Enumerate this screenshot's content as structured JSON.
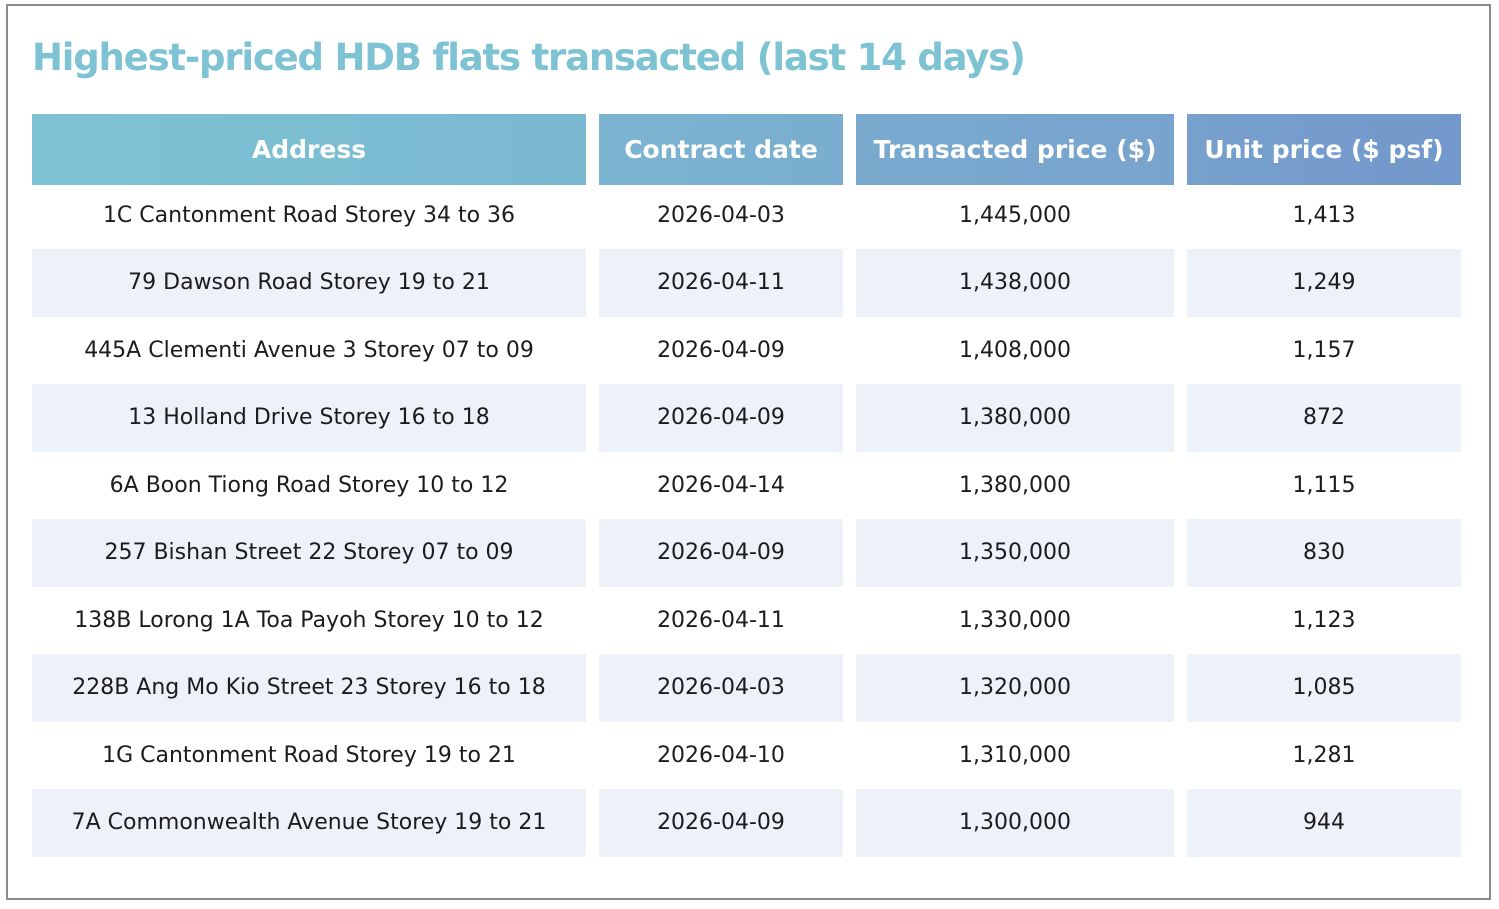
{
  "title": "Highest-priced HDB flats transacted (last 14 days)",
  "table": {
    "headers": [
      "Address",
      "Contract date",
      "Transacted price ($)",
      "Unit price ($ psf)"
    ],
    "rows": [
      [
        "1C Cantonment Road Storey 34 to 36",
        "2026-04-03",
        "1,445,000",
        "1,413"
      ],
      [
        "79 Dawson Road Storey 19 to 21",
        "2026-04-11",
        "1,438,000",
        "1,249"
      ],
      [
        "445A Clementi Avenue 3 Storey 07 to 09",
        "2026-04-09",
        "1,408,000",
        "1,157"
      ],
      [
        "13 Holland Drive Storey 16 to 18",
        "2026-04-09",
        "1,380,000",
        "872"
      ],
      [
        "6A Boon Tiong Road Storey 10 to 12",
        "2026-04-14",
        "1,380,000",
        "1,115"
      ],
      [
        "257 Bishan Street 22 Storey 07 to 09",
        "2026-04-09",
        "1,350,000",
        "830"
      ],
      [
        "138B Lorong 1A Toa Payoh Storey 10 to 12",
        "2026-04-11",
        "1,330,000",
        "1,123"
      ],
      [
        "228B Ang Mo Kio Street 23 Storey 16 to 18",
        "2026-04-03",
        "1,320,000",
        "1,085"
      ],
      [
        "1G Cantonment Road Storey 19 to 21",
        "2026-04-10",
        "1,310,000",
        "1,281"
      ],
      [
        "7A Commonwealth Avenue Storey 19 to 21",
        "2026-04-09",
        "1,300,000",
        "944"
      ]
    ]
  },
  "colors": {
    "title": "#7dc3d3",
    "header_start": "#7dc3d3",
    "header_end": "#7398cb",
    "row_alt": "#edf1f8",
    "text": "#1c1c1c"
  }
}
